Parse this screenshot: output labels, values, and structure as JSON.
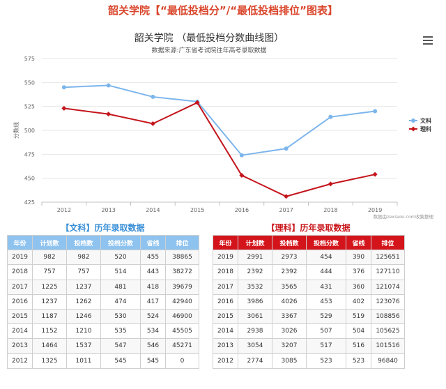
{
  "page_heading": "韶关学院【“最低投档分”/“最低投档排位”图表】",
  "chart_data": {
    "type": "line",
    "title": "韶关学院 （最低投档分数曲线图）",
    "subtitle": "数据来源:广东省考试院往年高考录取数据",
    "ylabel": "分数线",
    "ylim": [
      425,
      575
    ],
    "yticks": [
      425,
      450,
      475,
      500,
      525,
      550,
      575
    ],
    "categories": [
      "2012",
      "2013",
      "2014",
      "2015",
      "2016",
      "2017",
      "2018",
      "2019"
    ],
    "series": [
      {
        "name": "文科",
        "color": "#7cb5ec",
        "values": [
          545,
          547,
          535,
          530,
          474,
          481,
          514,
          520
        ]
      },
      {
        "name": "理科",
        "color": "#c4151c",
        "values": [
          523,
          517,
          507,
          529,
          453,
          431,
          444,
          454
        ]
      }
    ],
    "legend_position": "right",
    "grid": true,
    "credit": "数据由zexiaoe.com收集整理"
  },
  "menu_icon": "hamburger-menu-icon",
  "wen_table": {
    "title": "【文科】历年录取数据",
    "headers": [
      "年份",
      "计划数",
      "投档数",
      "投档分数",
      "省线",
      "排位"
    ],
    "rows": [
      [
        "2019",
        "982",
        "982",
        "520",
        "455",
        "38865"
      ],
      [
        "2018",
        "757",
        "757",
        "514",
        "443",
        "38272"
      ],
      [
        "2017",
        "1225",
        "1237",
        "481",
        "418",
        "39679"
      ],
      [
        "2016",
        "1237",
        "1262",
        "474",
        "417",
        "42940"
      ],
      [
        "2015",
        "1187",
        "1246",
        "530",
        "524",
        "46900"
      ],
      [
        "2014",
        "1152",
        "1210",
        "535",
        "534",
        "45505"
      ],
      [
        "2013",
        "1464",
        "1537",
        "547",
        "546",
        "45271"
      ],
      [
        "2012",
        "1325",
        "1011",
        "545",
        "545",
        "0"
      ]
    ]
  },
  "li_table": {
    "title": "【理科】历年录取数据",
    "headers": [
      "年份",
      "计划数",
      "投档数",
      "投档分数",
      "省线",
      "排位"
    ],
    "rows": [
      [
        "2019",
        "2991",
        "2973",
        "454",
        "390",
        "125651"
      ],
      [
        "2018",
        "2392",
        "2392",
        "444",
        "376",
        "127110"
      ],
      [
        "2017",
        "3532",
        "3565",
        "431",
        "360",
        "121074"
      ],
      [
        "2016",
        "3986",
        "4026",
        "453",
        "402",
        "123076"
      ],
      [
        "2015",
        "3061",
        "3367",
        "529",
        "519",
        "108856"
      ],
      [
        "2014",
        "2938",
        "3026",
        "507",
        "504",
        "105625"
      ],
      [
        "2013",
        "3054",
        "3207",
        "517",
        "516",
        "101516"
      ],
      [
        "2012",
        "2774",
        "3085",
        "523",
        "523",
        "96840"
      ]
    ]
  }
}
